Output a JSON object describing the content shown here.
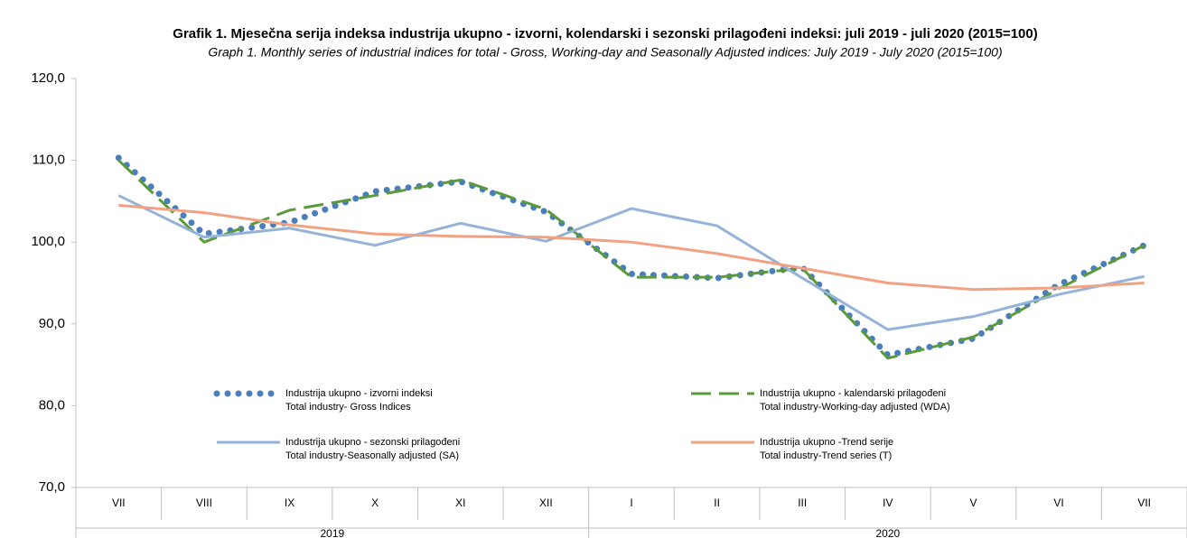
{
  "chart_data": {
    "type": "line",
    "title": "Grafik 1. Mjesečna serija indeksa industrija ukupno - izvorni, kolendarski i sezonski prilagođeni indeksi: juli 2019 - juli 2020 (2015=100)",
    "subtitle": "Graph 1. Monthly series of industrial indices for total - Gross, Working-day and Seasonally Adjusted indices: July 2019 - July 2020 (2015=100)",
    "categories": [
      "VII",
      "VIII",
      "IX",
      "X",
      "XI",
      "XII",
      "I",
      "II",
      "III",
      "IV",
      "V",
      "VI",
      "VII"
    ],
    "years": [
      {
        "label": "2019",
        "from": 0,
        "to": 5
      },
      {
        "label": "2020",
        "from": 6,
        "to": 12
      }
    ],
    "ylim": [
      70,
      120
    ],
    "yticks": [
      {
        "value": 70,
        "label": "70,0"
      },
      {
        "value": 80,
        "label": "80,0"
      },
      {
        "value": 90,
        "label": "90,0"
      },
      {
        "value": 100,
        "label": "100,0"
      },
      {
        "value": 110,
        "label": "110,0"
      },
      {
        "value": 120,
        "label": "120,0"
      }
    ],
    "grid": false,
    "series": [
      {
        "name": "Industrija ukupno - izvorni indeksi",
        "name_en": "Total industry- Gross Indices",
        "color": "#4a7ebb",
        "style": "dotted",
        "values": [
          110.3,
          101.0,
          102.4,
          106.2,
          107.4,
          103.7,
          96.1,
          95.6,
          96.9,
          86.2,
          88.2,
          94.8,
          99.6
        ]
      },
      {
        "name": "Industrija ukupno - kalendarski prilagođeni",
        "name_en": "Total industry-Working-day adjusted (WDA)",
        "color": "#5b9a3b",
        "style": "dashed",
        "values": [
          110.0,
          100.0,
          103.9,
          105.7,
          107.6,
          104.0,
          95.7,
          95.7,
          96.8,
          85.8,
          88.4,
          94.3,
          99.6
        ]
      },
      {
        "name": "Industrija ukupno - sezonski prilagođeni",
        "name_en": "Total industry-Seasonally adjusted (SA)",
        "color": "#95b3d7",
        "style": "solid",
        "values": [
          105.7,
          100.6,
          101.7,
          99.6,
          102.3,
          100.1,
          104.1,
          102.0,
          95.6,
          89.3,
          90.9,
          93.6,
          95.8
        ]
      },
      {
        "name": "Industrija ukupno -Trend serije",
        "name_en": "Total industry-Trend series (T)",
        "color": "#f2a283",
        "style": "solid",
        "values": [
          104.5,
          103.6,
          102.1,
          101.0,
          100.7,
          100.6,
          100.0,
          98.6,
          96.8,
          95.0,
          94.2,
          94.4,
          95.0
        ]
      }
    ]
  }
}
